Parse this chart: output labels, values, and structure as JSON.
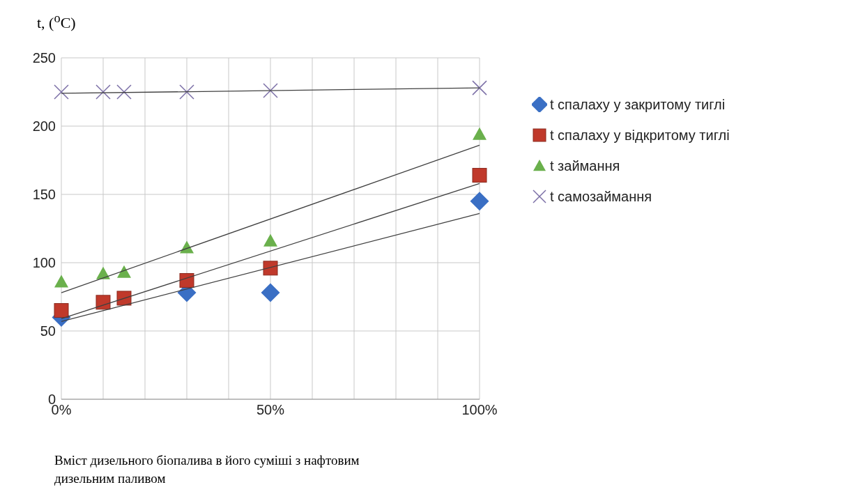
{
  "chart_data": {
    "type": "scatter",
    "ylabel": "t, ($^{o}$C)",
    "xlabel": "Вміст дизельного біопалива в його суміші з нафтовим дизельним паливом",
    "xlim": [
      0,
      100
    ],
    "xticks": [
      {
        "value": 0,
        "label": "0%"
      },
      {
        "value": 10,
        "label": null
      },
      {
        "value": 20,
        "label": null
      },
      {
        "value": 30,
        "label": null
      },
      {
        "value": 40,
        "label": null
      },
      {
        "value": 50,
        "label": "50%"
      },
      {
        "value": 60,
        "label": null
      },
      {
        "value": 70,
        "label": null
      },
      {
        "value": 80,
        "label": null
      },
      {
        "value": 90,
        "label": null
      },
      {
        "value": 100,
        "label": "100%"
      }
    ],
    "ylim": [
      0,
      250
    ],
    "yticks": [
      0,
      50,
      100,
      150,
      200,
      250
    ],
    "grid": true,
    "legend": "right",
    "series": [
      {
        "name": "t спалаху у закритому тиглі",
        "color": "#3a6fc4",
        "marker": "diamond",
        "x": [
          0,
          10,
          15,
          30,
          50,
          100
        ],
        "values": [
          60,
          null,
          null,
          78,
          78,
          145
        ]
      },
      {
        "name": "t спалаху у відкритому тиглі",
        "color": "#c0392b",
        "marker": "square",
        "x": [
          0,
          10,
          15,
          30,
          50,
          100
        ],
        "values": [
          65,
          71,
          74,
          87,
          96,
          164
        ]
      },
      {
        "name": "t займання",
        "color": "#6ab04c",
        "marker": "triangle",
        "x": [
          0,
          10,
          15,
          30,
          50,
          100
        ],
        "values": [
          86,
          92,
          93,
          111,
          116,
          194
        ]
      },
      {
        "name": "t самозаймання",
        "color": "#7b6fa6",
        "marker": "cross",
        "x": [
          0,
          10,
          15,
          30,
          50,
          100
        ],
        "values": [
          225,
          225,
          225,
          225,
          226,
          228
        ]
      },
      {
        "type": "line",
        "color": "#404040",
        "marker": "none",
        "line_style": "solid",
        "x": [
          0,
          100
        ],
        "values": [
          57,
          136
        ]
      },
      {
        "type": "line",
        "color": "#404040",
        "marker": "none",
        "line_style": "solid",
        "x": [
          0,
          100
        ],
        "values": [
          59,
          158
        ]
      },
      {
        "type": "line",
        "color": "#404040",
        "marker": "none",
        "line_style": "solid",
        "x": [
          0,
          100
        ],
        "values": [
          78,
          186
        ]
      },
      {
        "type": "line",
        "color": "#404040",
        "marker": "none",
        "line_style": "solid",
        "x": [
          0,
          100
        ],
        "values": [
          224,
          228
        ]
      }
    ]
  }
}
